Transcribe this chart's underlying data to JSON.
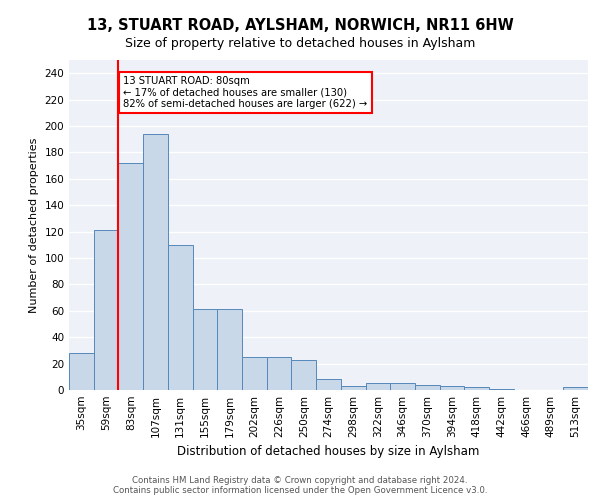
{
  "title_line1": "13, STUART ROAD, AYLSHAM, NORWICH, NR11 6HW",
  "title_line2": "Size of property relative to detached houses in Aylsham",
  "xlabel": "Distribution of detached houses by size in Aylsham",
  "ylabel": "Number of detached properties",
  "categories": [
    "35sqm",
    "59sqm",
    "83sqm",
    "107sqm",
    "131sqm",
    "155sqm",
    "179sqm",
    "202sqm",
    "226sqm",
    "250sqm",
    "274sqm",
    "298sqm",
    "322sqm",
    "346sqm",
    "370sqm",
    "394sqm",
    "418sqm",
    "442sqm",
    "466sqm",
    "489sqm",
    "513sqm"
  ],
  "values": [
    28,
    121,
    172,
    194,
    110,
    61,
    61,
    25,
    25,
    23,
    8,
    3,
    5,
    5,
    4,
    3,
    2,
    1,
    0,
    0,
    2
  ],
  "bar_color": "#c8d8e8",
  "bar_edge_color": "#5588bb",
  "vline_x_index": 2,
  "annotation_text": "13 STUART ROAD: 80sqm\n← 17% of detached houses are smaller (130)\n82% of semi-detached houses are larger (622) →",
  "annotation_box_color": "white",
  "annotation_box_edge_color": "red",
  "vline_color": "red",
  "background_color": "#eef2f8",
  "footer_text": "Contains HM Land Registry data © Crown copyright and database right 2024.\nContains public sector information licensed under the Open Government Licence v3.0.",
  "ylim": [
    0,
    250
  ],
  "yticks": [
    0,
    20,
    40,
    60,
    80,
    100,
    120,
    140,
    160,
    180,
    200,
    220,
    240
  ],
  "title1_fontsize": 10.5,
  "title2_fontsize": 9,
  "ylabel_fontsize": 8,
  "xlabel_fontsize": 8.5,
  "tick_fontsize": 7.5,
  "footer_fontsize": 6.2
}
